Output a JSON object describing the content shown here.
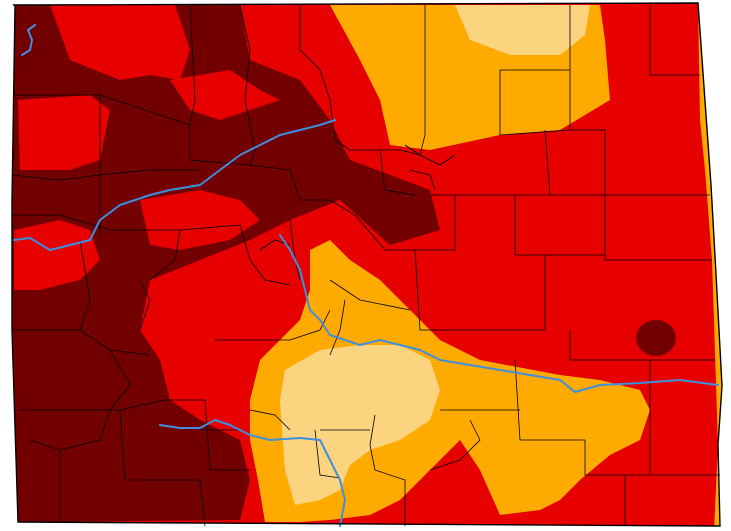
{
  "map": {
    "region": "Colorado",
    "classes": [
      {
        "id": "moderate",
        "color": "#fcd37f"
      },
      {
        "id": "severe",
        "color": "#ffaa00"
      },
      {
        "id": "extreme",
        "color": "#e60000"
      },
      {
        "id": "exceptional",
        "color": "#730000"
      }
    ],
    "colors": {
      "background": "#ffffff",
      "county_lines": "#000000",
      "rivers": "#3d8fe0"
    }
  }
}
